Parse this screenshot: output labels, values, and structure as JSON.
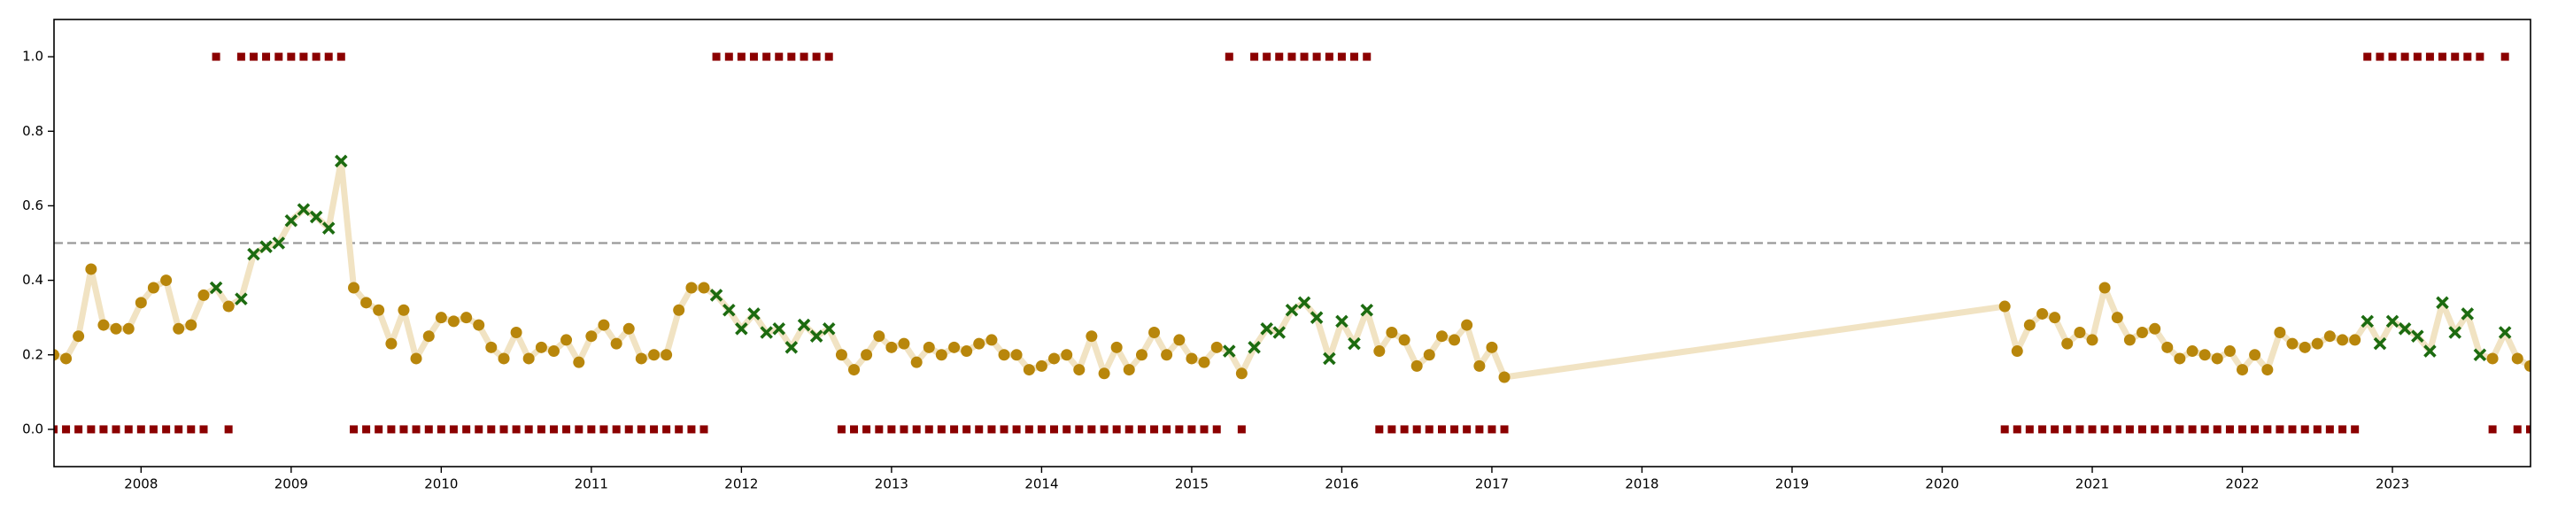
{
  "chart_data": {
    "type": "line",
    "x": [
      2007.417,
      2007.5,
      2007.583,
      2007.667,
      2007.75,
      2007.833,
      2007.917,
      2008,
      2008.083,
      2008.167,
      2008.25,
      2008.333,
      2008.417,
      2008.5,
      2008.583,
      2008.667,
      2008.75,
      2008.833,
      2008.917,
      2009,
      2009.083,
      2009.167,
      2009.25,
      2009.333,
      2009.417,
      2009.5,
      2009.583,
      2009.667,
      2009.75,
      2009.833,
      2009.917,
      2010,
      2010.083,
      2010.167,
      2010.25,
      2010.333,
      2010.417,
      2010.5,
      2010.583,
      2010.667,
      2010.75,
      2010.833,
      2010.917,
      2011,
      2011.083,
      2011.167,
      2011.25,
      2011.333,
      2011.417,
      2011.5,
      2011.583,
      2011.667,
      2011.75,
      2011.833,
      2011.917,
      2012,
      2012.083,
      2012.167,
      2012.25,
      2012.333,
      2012.417,
      2012.5,
      2012.583,
      2012.667,
      2012.75,
      2012.833,
      2012.917,
      2013,
      2013.083,
      2013.167,
      2013.25,
      2013.333,
      2013.417,
      2013.5,
      2013.583,
      2013.667,
      2013.75,
      2013.833,
      2013.917,
      2014,
      2014.083,
      2014.167,
      2014.25,
      2014.333,
      2014.417,
      2014.5,
      2014.583,
      2014.667,
      2014.75,
      2014.833,
      2014.917,
      2015,
      2015.083,
      2015.167,
      2015.25,
      2015.333,
      2015.417,
      2015.5,
      2015.583,
      2015.667,
      2015.75,
      2015.833,
      2015.917,
      2016,
      2016.083,
      2016.167,
      2016.25,
      2016.333,
      2016.417,
      2016.5,
      2016.583,
      2016.667,
      2016.75,
      2016.833,
      2016.917,
      2017,
      2017.083,
      2020.417,
      2020.5,
      2020.583,
      2020.667,
      2020.75,
      2020.833,
      2020.917,
      2021,
      2021.083,
      2021.167,
      2021.25,
      2021.333,
      2021.417,
      2021.5,
      2021.583,
      2021.667,
      2021.75,
      2021.833,
      2021.917,
      2022,
      2022.083,
      2022.167,
      2022.25,
      2022.333,
      2022.417,
      2022.5,
      2022.583,
      2022.667,
      2022.75,
      2022.833,
      2022.917,
      2023,
      2023.083,
      2023.167,
      2023.25,
      2023.333,
      2023.417,
      2023.5,
      2023.583,
      2023.667,
      2023.75,
      2023.833,
      2023.917
    ],
    "series": [
      {
        "color": "#f1e3c3",
        "marker_colors": [
          "#b8860b",
          "#1c6b10"
        ],
        "values": [
          0.2,
          0.19,
          0.25,
          0.43,
          0.28,
          0.27,
          0.27,
          0.34,
          0.38,
          0.4,
          0.27,
          0.28,
          0.36,
          0.38,
          0.33,
          0.35,
          0.47,
          0.49,
          0.5,
          0.56,
          0.59,
          0.57,
          0.54,
          0.72,
          0.38,
          0.34,
          0.32,
          0.23,
          0.32,
          0.19,
          0.25,
          0.3,
          0.29,
          0.3,
          0.28,
          0.22,
          0.19,
          0.26,
          0.19,
          0.22,
          0.21,
          0.24,
          0.18,
          0.25,
          0.28,
          0.23,
          0.27,
          0.19,
          0.2,
          0.2,
          0.32,
          0.38,
          0.38,
          0.36,
          0.32,
          0.27,
          0.31,
          0.26,
          0.27,
          0.22,
          0.28,
          0.25,
          0.27,
          0.2,
          0.16,
          0.2,
          0.25,
          0.22,
          0.23,
          0.18,
          0.22,
          0.2,
          0.22,
          0.21,
          0.23,
          0.24,
          0.2,
          0.2,
          0.16,
          0.17,
          0.19,
          0.2,
          0.16,
          0.25,
          0.15,
          0.22,
          0.16,
          0.2,
          0.26,
          0.2,
          0.24,
          0.19,
          0.18,
          0.22,
          0.21,
          0.15,
          0.22,
          0.27,
          0.26,
          0.32,
          0.34,
          0.3,
          0.19,
          0.29,
          0.23,
          0.32,
          0.21,
          0.26,
          0.24,
          0.17,
          0.2,
          0.25,
          0.24,
          0.28,
          0.17,
          0.22,
          0.14,
          0.33,
          0.21,
          0.28,
          0.31,
          0.3,
          0.23,
          0.26,
          0.24,
          0.38,
          0.3,
          0.24,
          0.26,
          0.27,
          0.22,
          0.19,
          0.21,
          0.2,
          0.19,
          0.21,
          0.16,
          0.2,
          0.16,
          0.26,
          0.23,
          0.22,
          0.23,
          0.25,
          0.24,
          0.24,
          0.29,
          0.23,
          0.29,
          0.27,
          0.25,
          0.21,
          0.34,
          0.26,
          0.31,
          0.2,
          0.19,
          0.26,
          0.19,
          0.17
        ]
      }
    ],
    "signal": {
      "color": "#8b0000",
      "values": [
        0,
        0,
        0,
        0,
        0,
        0,
        0,
        0,
        0,
        0,
        0,
        0,
        0,
        1,
        0,
        1,
        1,
        1,
        1,
        1,
        1,
        1,
        1,
        1,
        0,
        0,
        0,
        0,
        0,
        0,
        0,
        0,
        0,
        0,
        0,
        0,
        0,
        0,
        0,
        0,
        0,
        0,
        0,
        0,
        0,
        0,
        0,
        0,
        0,
        0,
        0,
        0,
        0,
        1,
        1,
        1,
        1,
        1,
        1,
        1,
        1,
        1,
        1,
        0,
        0,
        0,
        0,
        0,
        0,
        0,
        0,
        0,
        0,
        0,
        0,
        0,
        0,
        0,
        0,
        0,
        0,
        0,
        0,
        0,
        0,
        0,
        0,
        0,
        0,
        0,
        0,
        0,
        0,
        0,
        1,
        0,
        1,
        1,
        1,
        1,
        1,
        1,
        1,
        1,
        1,
        1,
        0,
        0,
        0,
        0,
        0,
        0,
        0,
        0,
        0,
        0,
        0,
        0,
        0,
        0,
        0,
        0,
        0,
        0,
        0,
        0,
        0,
        0,
        0,
        0,
        0,
        0,
        0,
        0,
        0,
        0,
        0,
        0,
        0,
        0,
        0,
        0,
        0,
        0,
        0,
        0,
        1,
        1,
        1,
        1,
        1,
        1,
        1,
        1,
        1,
        1,
        0,
        1,
        0,
        0
      ]
    },
    "threshold": {
      "value": 0.5,
      "color": "#999999"
    },
    "xlim": [
      2007.42,
      2023.92
    ],
    "xticks": [
      2008,
      2009,
      2010,
      2011,
      2012,
      2013,
      2014,
      2015,
      2016,
      2017,
      2018,
      2019,
      2020,
      2021,
      2022,
      2023
    ],
    "ylim": [
      -0.1,
      1.1
    ],
    "yticks": [
      {
        "value": 0,
        "label": "0.0"
      },
      0.2,
      0.4,
      0.6,
      0.8,
      {
        "value": 1,
        "label": "1.0"
      }
    ]
  }
}
